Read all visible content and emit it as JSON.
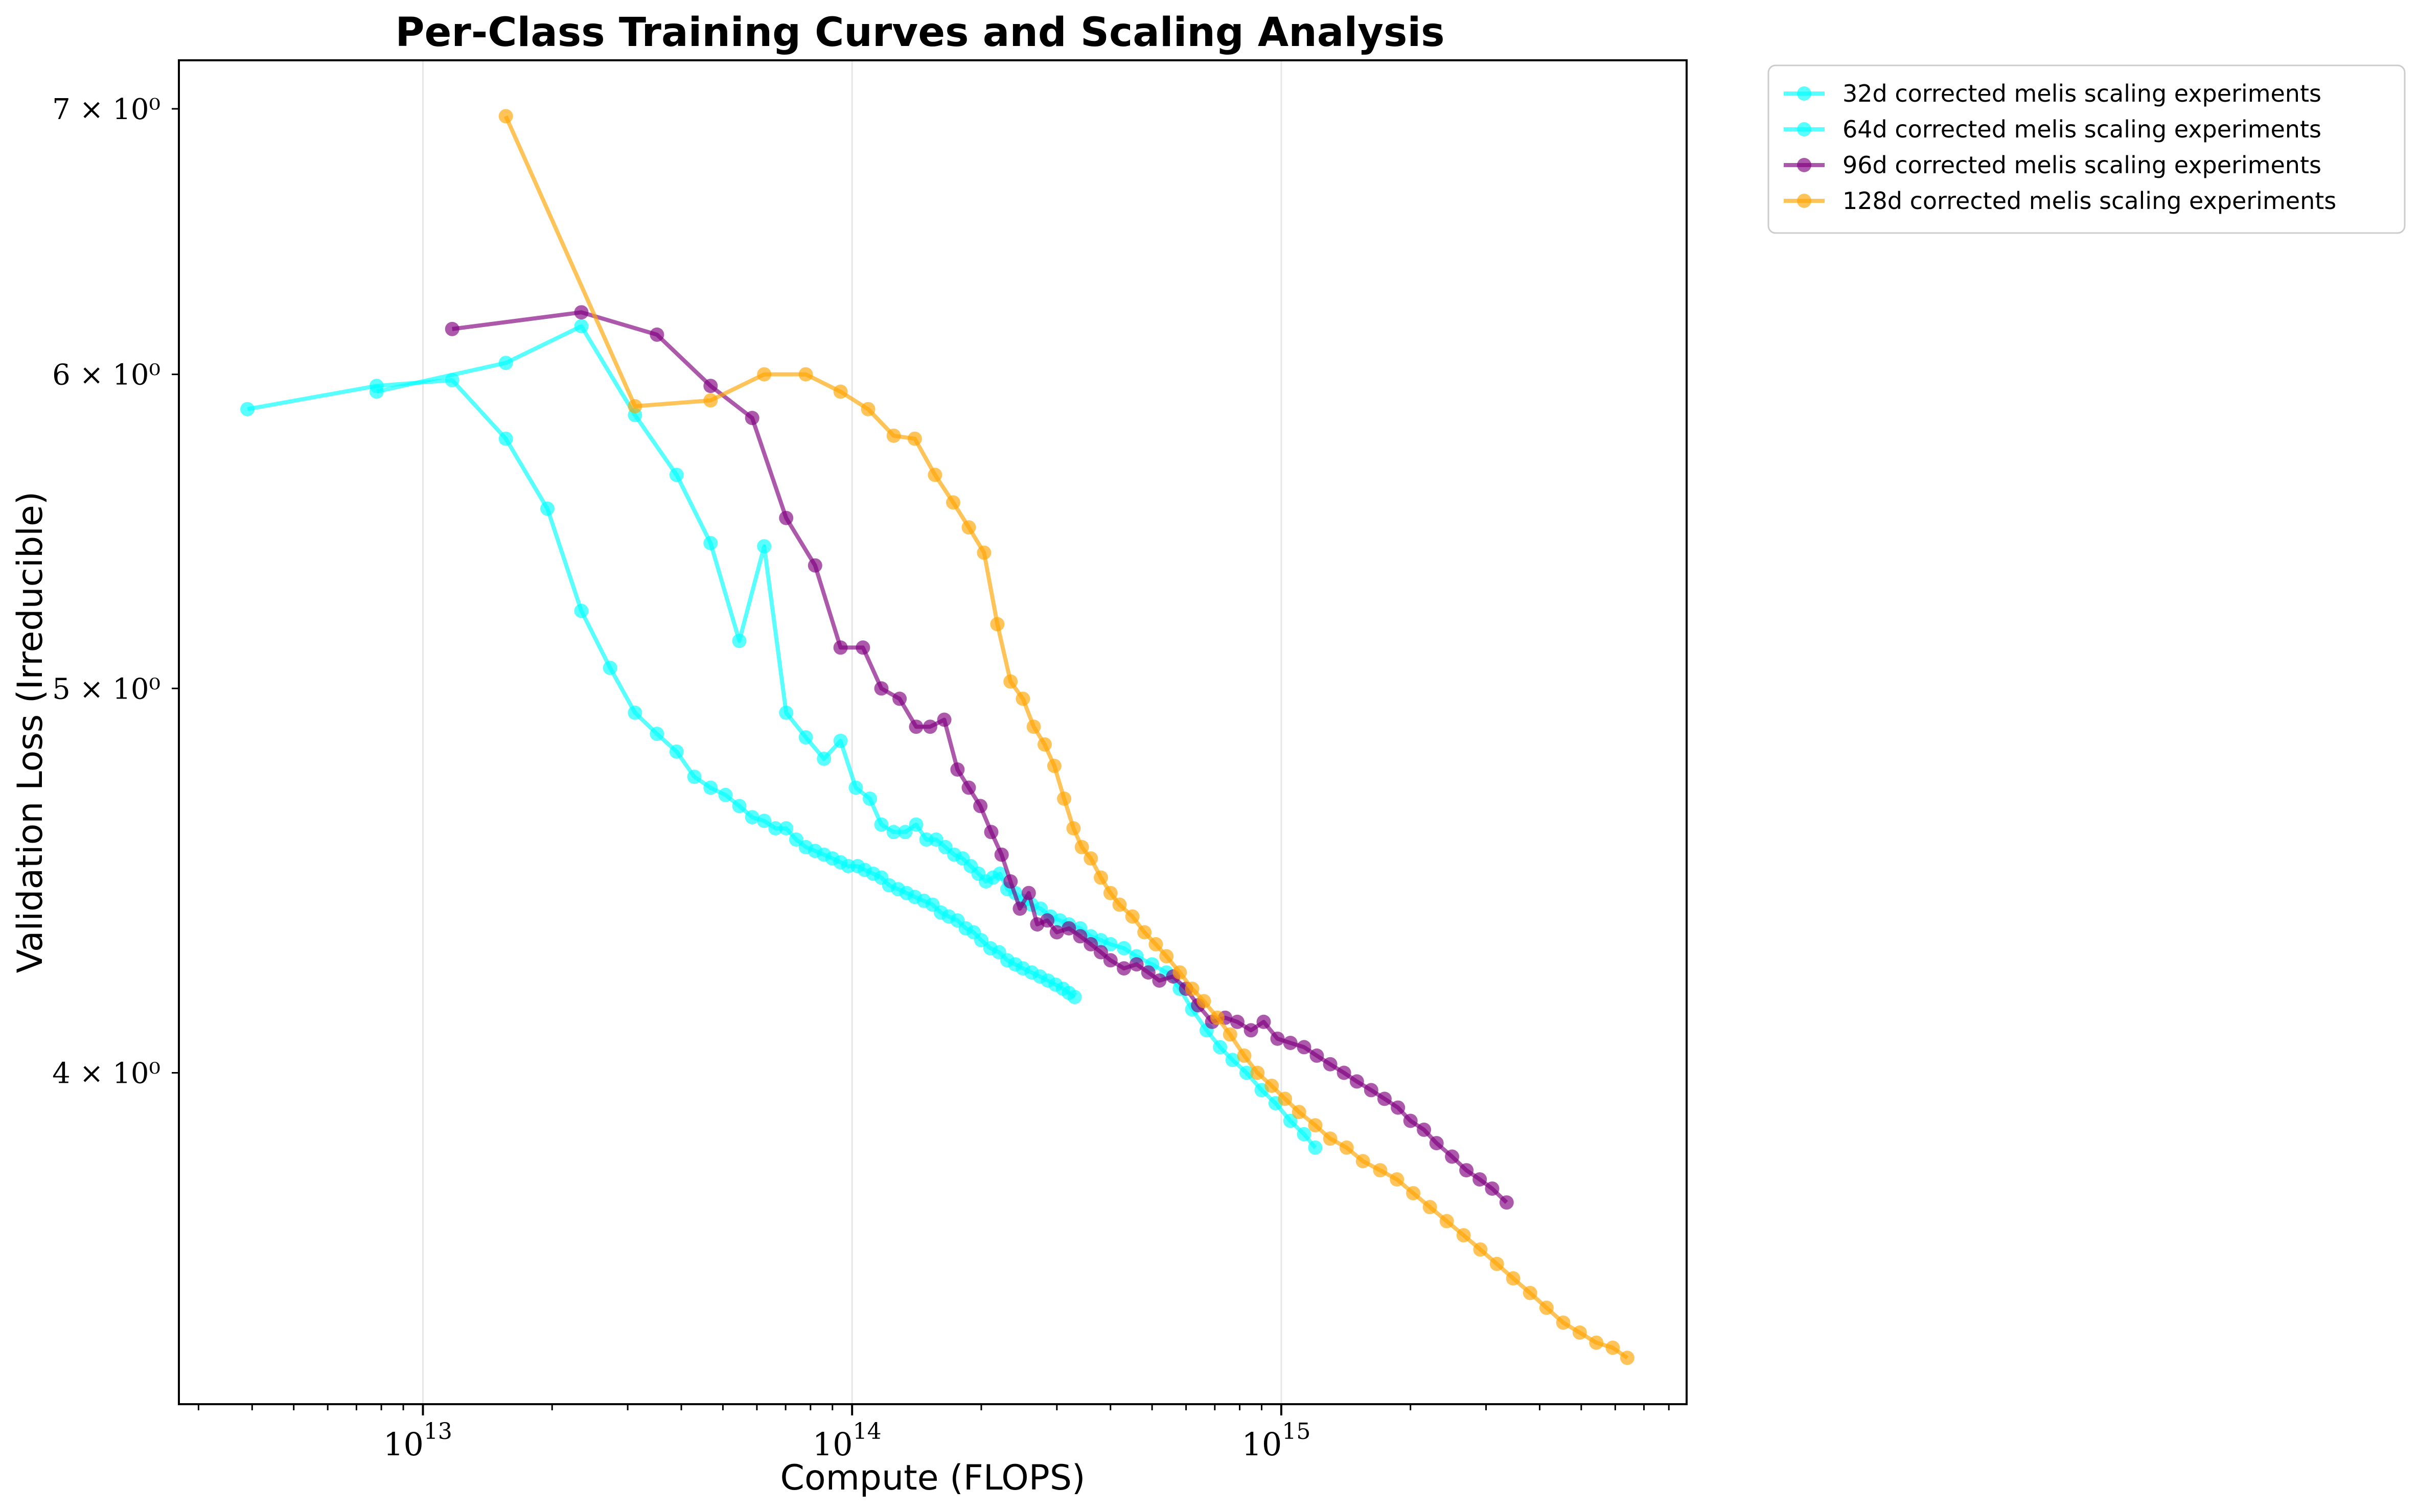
{
  "chart_data": {
    "type": "line",
    "title": "Per-Class Training Curves and Scaling Analysis",
    "xlabel": "Compute (FLOPS)",
    "ylabel": "Validation Loss (Irreducible)",
    "xscale": "log",
    "yscale": "log",
    "xlim": [
      2700000000000.0,
      8800000000000000.0
    ],
    "ylim": [
      3.3,
      7.2
    ],
    "x_ticks": [
      {
        "value": 10000000000000.0,
        "base": "10",
        "exp": "13"
      },
      {
        "value": 100000000000000.0,
        "base": "10",
        "exp": "14"
      },
      {
        "value": 1000000000000000.0,
        "base": "10",
        "exp": "15"
      }
    ],
    "y_ticks": [
      {
        "value": 4,
        "label": "4 × 10⁰"
      },
      {
        "value": 5,
        "label": "5 × 10⁰"
      },
      {
        "value": 6,
        "label": "6 × 10⁰"
      },
      {
        "value": 7,
        "label": "7 × 10⁰"
      }
    ],
    "grid": "vertical major gridlines",
    "legend_position": "outside top-right",
    "series": [
      {
        "name": "32d corrected melis scaling experiments",
        "color": "#00FFFF",
        "x": [
          3900000000000.0,
          7800000000000.0,
          11700000000000.0,
          15600000000000.0,
          19500000000000.0,
          23400000000000.0,
          27300000000000.0,
          31200000000000.0,
          35100000000000.0,
          39000000000000.0,
          42900000000000.0,
          46800000000000.0,
          50700000000000.0,
          54600000000000.0,
          58500000000000.0,
          62400000000000.0,
          66300000000000.0,
          70200000000000.0,
          74100000000000.0,
          78000000000000.0,
          82000000000000.0,
          86000000000000.0,
          90000000000000.0,
          94000000000000.0,
          98000000000000.0,
          103000000000000.0,
          107000000000000.0,
          112000000000000.0,
          117000000000000.0,
          122000000000000.0,
          128000000000000.0,
          134000000000000.0,
          140000000000000.0,
          147000000000000.0,
          154000000000000.0,
          161000000000000.0,
          168000000000000.0,
          176000000000000.0,
          184000000000000.0,
          192000000000000.0,
          200000000000000.0,
          210000000000000.0,
          220000000000000.0,
          230000000000000.0,
          240000000000000.0,
          250000000000000.0,
          262000000000000.0,
          274000000000000.0,
          286000000000000.0,
          298000000000000.0,
          310000000000000.0,
          320000000000000.0,
          330000000000000.0
        ],
        "values": [
          5.88,
          5.96,
          5.98,
          5.78,
          5.55,
          5.23,
          5.06,
          4.93,
          4.87,
          4.82,
          4.75,
          4.72,
          4.7,
          4.67,
          4.64,
          4.63,
          4.61,
          4.61,
          4.58,
          4.56,
          4.55,
          4.54,
          4.53,
          4.52,
          4.51,
          4.51,
          4.5,
          4.49,
          4.48,
          4.46,
          4.45,
          4.44,
          4.43,
          4.42,
          4.41,
          4.39,
          4.38,
          4.37,
          4.35,
          4.34,
          4.32,
          4.3,
          4.29,
          4.27,
          4.26,
          4.25,
          4.24,
          4.23,
          4.22,
          4.21,
          4.2,
          4.19,
          4.18
        ]
      },
      {
        "name": "64d corrected melis scaling experiments",
        "color": "#00FFFF",
        "x": [
          7800000000000.0,
          15600000000000.0,
          23400000000000.0,
          31200000000000.0,
          39000000000000.0,
          46800000000000.0,
          54600000000000.0,
          62400000000000.0,
          70200000000000.0,
          78000000000000.0,
          86000000000000.0,
          94000000000000.0,
          102000000000000.0,
          110000000000000.0,
          117000000000000.0,
          125000000000000.0,
          133000000000000.0,
          141000000000000.0,
          149000000000000.0,
          157000000000000.0,
          165000000000000.0,
          173000000000000.0,
          181000000000000.0,
          189000000000000.0,
          197000000000000.0,
          205000000000000.0,
          213000000000000.0,
          221000000000000.0,
          230000000000000.0,
          240000000000000.0,
          250000000000000.0,
          262000000000000.0,
          275000000000000.0,
          290000000000000.0,
          305000000000000.0,
          320000000000000.0,
          340000000000000.0,
          360000000000000.0,
          380000000000000.0,
          400000000000000.0,
          430000000000000.0,
          460000000000000.0,
          500000000000000.0,
          540000000000000.0,
          580000000000000.0,
          620000000000000.0,
          670000000000000.0,
          720000000000000.0,
          770000000000000.0,
          830000000000000.0,
          900000000000000.0,
          970000000000000.0,
          1050000000000000.0,
          1130000000000000.0,
          1200000000000000.0
        ],
        "values": [
          5.94,
          6.04,
          6.17,
          5.86,
          5.66,
          5.44,
          5.14,
          5.43,
          4.93,
          4.86,
          4.8,
          4.85,
          4.72,
          4.69,
          4.62,
          4.6,
          4.6,
          4.62,
          4.58,
          4.58,
          4.56,
          4.54,
          4.53,
          4.51,
          4.49,
          4.47,
          4.48,
          4.49,
          4.45,
          4.44,
          4.42,
          4.41,
          4.4,
          4.38,
          4.37,
          4.36,
          4.35,
          4.33,
          4.32,
          4.31,
          4.3,
          4.28,
          4.26,
          4.24,
          4.2,
          4.15,
          4.1,
          4.06,
          4.03,
          4.0,
          3.96,
          3.93,
          3.89,
          3.86,
          3.83
        ]
      },
      {
        "name": "96d corrected melis scaling experiments",
        "color": "#800080",
        "x": [
          11700000000000.0,
          23400000000000.0,
          35100000000000.0,
          46800000000000.0,
          58500000000000.0,
          70200000000000.0,
          82000000000000.0,
          94000000000000.0,
          106000000000000.0,
          117000000000000.0,
          129000000000000.0,
          141000000000000.0,
          152000000000000.0,
          164000000000000.0,
          176000000000000.0,
          187000000000000.0,
          199000000000000.0,
          211000000000000.0,
          223000000000000.0,
          234000000000000.0,
          246000000000000.0,
          258000000000000.0,
          270000000000000.0,
          285000000000000.0,
          300000000000000.0,
          320000000000000.0,
          340000000000000.0,
          360000000000000.0,
          380000000000000.0,
          400000000000000.0,
          430000000000000.0,
          460000000000000.0,
          490000000000000.0,
          520000000000000.0,
          560000000000000.0,
          600000000000000.0,
          640000000000000.0,
          690000000000000.0,
          740000000000000.0,
          790000000000000.0,
          850000000000000.0,
          910000000000000.0,
          980000000000000.0,
          1050000000000000.0,
          1130000000000000.0,
          1210000000000000.0,
          1300000000000000.0,
          1400000000000000.0,
          1500000000000000.0,
          1620000000000000.0,
          1740000000000000.0,
          1870000000000000.0,
          2000000000000000.0,
          2150000000000000.0,
          2300000000000000.0,
          2500000000000000.0,
          2700000000000000.0,
          2900000000000000.0,
          3100000000000000.0,
          3350000000000000.0
        ],
        "values": [
          6.16,
          6.22,
          6.14,
          5.96,
          5.85,
          5.52,
          5.37,
          5.12,
          5.12,
          5.0,
          4.97,
          4.89,
          4.89,
          4.91,
          4.77,
          4.72,
          4.67,
          4.6,
          4.54,
          4.47,
          4.4,
          4.44,
          4.36,
          4.37,
          4.34,
          4.35,
          4.33,
          4.31,
          4.29,
          4.27,
          4.25,
          4.26,
          4.24,
          4.22,
          4.23,
          4.2,
          4.16,
          4.12,
          4.13,
          4.12,
          4.1,
          4.12,
          4.08,
          4.07,
          4.06,
          4.04,
          4.02,
          4.0,
          3.98,
          3.96,
          3.94,
          3.92,
          3.89,
          3.87,
          3.84,
          3.81,
          3.78,
          3.76,
          3.74,
          3.71
        ]
      },
      {
        "name": "128d corrected melis scaling experiments",
        "color": "#FFA500",
        "x": [
          15600000000000.0,
          31200000000000.0,
          46800000000000.0,
          62400000000000.0,
          78000000000000.0,
          94000000000000.0,
          109000000000000.0,
          125000000000000.0,
          140000000000000.0,
          156000000000000.0,
          172000000000000.0,
          187000000000000.0,
          203000000000000.0,
          218000000000000.0,
          234000000000000.0,
          250000000000000.0,
          265000000000000.0,
          281000000000000.0,
          296000000000000.0,
          312000000000000.0,
          328000000000000.0,
          343000000000000.0,
          360000000000000.0,
          380000000000000.0,
          400000000000000.0,
          420000000000000.0,
          450000000000000.0,
          480000000000000.0,
          510000000000000.0,
          540000000000000.0,
          580000000000000.0,
          620000000000000.0,
          660000000000000.0,
          710000000000000.0,
          760000000000000.0,
          820000000000000.0,
          880000000000000.0,
          950000000000000.0,
          1020000000000000.0,
          1100000000000000.0,
          1200000000000000.0,
          1300000000000000.0,
          1420000000000000.0,
          1550000000000000.0,
          1700000000000000.0,
          1860000000000000.0,
          2030000000000000.0,
          2220000000000000.0,
          2430000000000000.0,
          2660000000000000.0,
          2910000000000000.0,
          3180000000000000.0,
          3470000000000000.0,
          3800000000000000.0,
          4150000000000000.0,
          4540000000000000.0,
          4960000000000000.0,
          5420000000000000.0,
          5920000000000000.0,
          6400000000000000.0
        ],
        "values": [
          6.97,
          5.89,
          5.91,
          6.0,
          6.0,
          5.94,
          5.88,
          5.79,
          5.78,
          5.66,
          5.57,
          5.49,
          5.41,
          5.19,
          5.02,
          4.97,
          4.89,
          4.84,
          4.78,
          4.69,
          4.61,
          4.56,
          4.53,
          4.48,
          4.44,
          4.41,
          4.38,
          4.34,
          4.31,
          4.28,
          4.24,
          4.2,
          4.17,
          4.13,
          4.09,
          4.04,
          4.0,
          3.97,
          3.94,
          3.91,
          3.88,
          3.85,
          3.83,
          3.8,
          3.78,
          3.76,
          3.73,
          3.7,
          3.67,
          3.64,
          3.61,
          3.58,
          3.55,
          3.52,
          3.49,
          3.46,
          3.44,
          3.42,
          3.41,
          3.39
        ]
      }
    ]
  }
}
